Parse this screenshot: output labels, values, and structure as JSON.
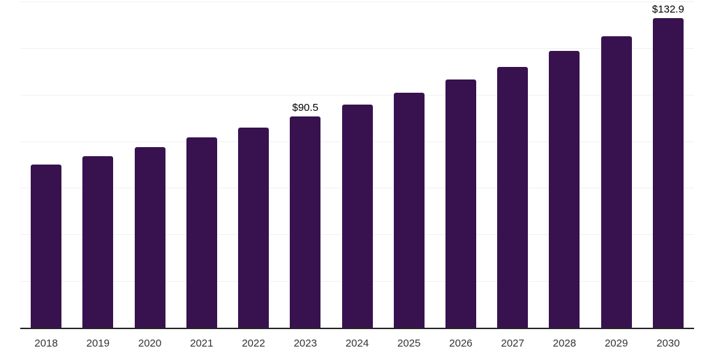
{
  "chart_data": {
    "type": "bar",
    "title": "",
    "xlabel": "",
    "ylabel": "",
    "categories": [
      "2018",
      "2019",
      "2020",
      "2021",
      "2022",
      "2023",
      "2024",
      "2025",
      "2026",
      "2027",
      "2028",
      "2029",
      "2030"
    ],
    "values": [
      70.0,
      73.6,
      77.5,
      81.8,
      86.0,
      90.5,
      95.7,
      100.8,
      106.4,
      112.0,
      118.7,
      125.1,
      132.9
    ],
    "data_labels": {
      "2023": "$90.5",
      "2030": "$132.9"
    },
    "ylim": [
      0,
      140
    ],
    "gridline_step": 20,
    "grid": true,
    "legend": false,
    "y_axis_labels_visible": false,
    "colors": {
      "bar": "#38124f",
      "gridline": "#f0f0f0",
      "axis_line": "#262626",
      "tick_label": "#333333",
      "data_label": "#000000",
      "background": "#ffffff"
    }
  }
}
